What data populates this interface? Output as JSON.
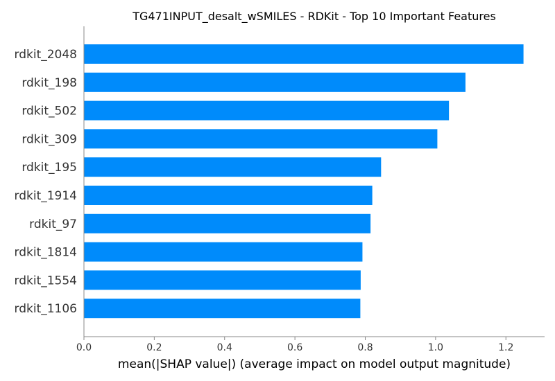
{
  "chart_data": {
    "type": "bar",
    "orientation": "horizontal",
    "title": "TG471INPUT_desalt_wSMILES - RDKit - Top 10 Important Features",
    "xlabel": "mean(|SHAP value|) (average impact on model output magnitude)",
    "ylabel": "",
    "categories": [
      "rdkit_2048",
      "rdkit_198",
      "rdkit_502",
      "rdkit_309",
      "rdkit_195",
      "rdkit_1914",
      "rdkit_97",
      "rdkit_1814",
      "rdkit_1554",
      "rdkit_1106"
    ],
    "values": [
      1.25,
      1.085,
      1.038,
      1.005,
      0.845,
      0.82,
      0.815,
      0.792,
      0.787,
      0.786
    ],
    "xlim": [
      0.0,
      1.31
    ],
    "xticks": [
      0.0,
      0.2,
      0.4,
      0.6,
      0.8,
      1.0,
      1.2
    ],
    "xtick_labels": [
      "0.0",
      "0.2",
      "0.4",
      "0.6",
      "0.8",
      "1.0",
      "1.2"
    ],
    "bar_color": "#008bfb",
    "grid": false,
    "legend": "none"
  }
}
